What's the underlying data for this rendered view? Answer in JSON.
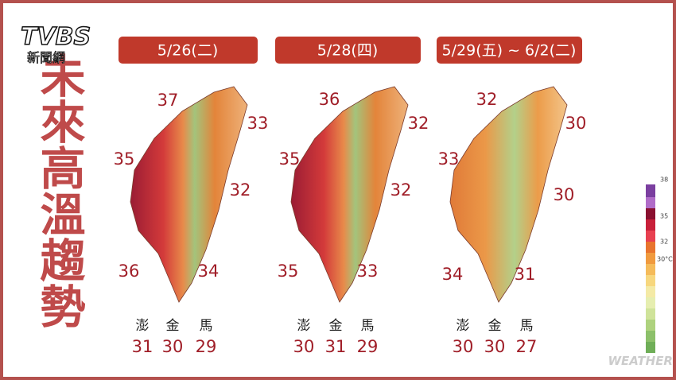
{
  "logo": {
    "brand": "TVBS",
    "subtitle": "新聞網"
  },
  "title": "未來高溫趨勢",
  "island_names": [
    "澎",
    "金",
    "馬"
  ],
  "panels": [
    {
      "date": "5/26(二)",
      "north": 37,
      "northeast": 33,
      "west": 35,
      "east": 32,
      "southwest": 36,
      "southeast": 34,
      "islands": [
        31,
        30,
        29
      ]
    },
    {
      "date": "5/28(四)",
      "north": 36,
      "northeast": 32,
      "west": 35,
      "east": 32,
      "southwest": 35,
      "southeast": 33,
      "islands": [
        30,
        31,
        29
      ]
    },
    {
      "date": "5/29(五) ~ 6/2(二)",
      "north": 32,
      "northeast": 30,
      "west": 33,
      "east": 30,
      "southwest": 34,
      "southeast": 31,
      "islands": [
        30,
        30,
        27
      ]
    }
  ],
  "legend": [
    "38",
    "35",
    "32",
    "30°C"
  ],
  "watermark": "WEATHER"
}
